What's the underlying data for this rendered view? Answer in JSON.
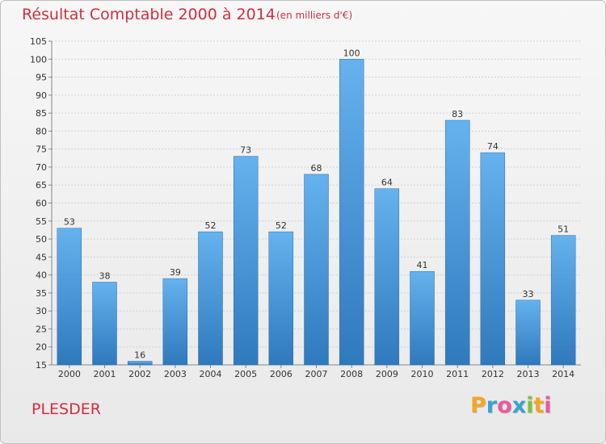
{
  "header": {
    "title": "Résultat Comptable 2000 à 2014",
    "subtitle": "(en milliers d'€)"
  },
  "footer": {
    "commune": "PLESDER",
    "logo": {
      "letters": [
        "P",
        "r",
        "o",
        "x",
        "i",
        "t",
        "i"
      ],
      "colors": [
        "#f4a623",
        "#3aa0d8",
        "#e85aa0",
        "#3aa0d8",
        "#7ac142",
        "#f4a623",
        "#e85aa0"
      ]
    }
  },
  "colors": {
    "bar_light": "#65b2ee",
    "bar_dark": "#2f79bd",
    "text": "#333333",
    "title": "#d0303a"
  },
  "chart_data": {
    "type": "bar",
    "categories": [
      "2000",
      "2001",
      "2002",
      "2003",
      "2004",
      "2005",
      "2006",
      "2007",
      "2008",
      "2009",
      "2010",
      "2011",
      "2012",
      "2013",
      "2014"
    ],
    "values": [
      53,
      38,
      16,
      39,
      52,
      73,
      52,
      68,
      100,
      64,
      41,
      83,
      74,
      33,
      51
    ],
    "title": "Résultat Comptable 2000 à 2014",
    "xlabel": "",
    "ylabel": "",
    "ylim": [
      15,
      105
    ],
    "yticks": [
      15,
      20,
      25,
      30,
      35,
      40,
      45,
      50,
      55,
      60,
      65,
      70,
      75,
      80,
      85,
      90,
      95,
      100,
      105
    ],
    "grid": true,
    "data_labels": true
  }
}
